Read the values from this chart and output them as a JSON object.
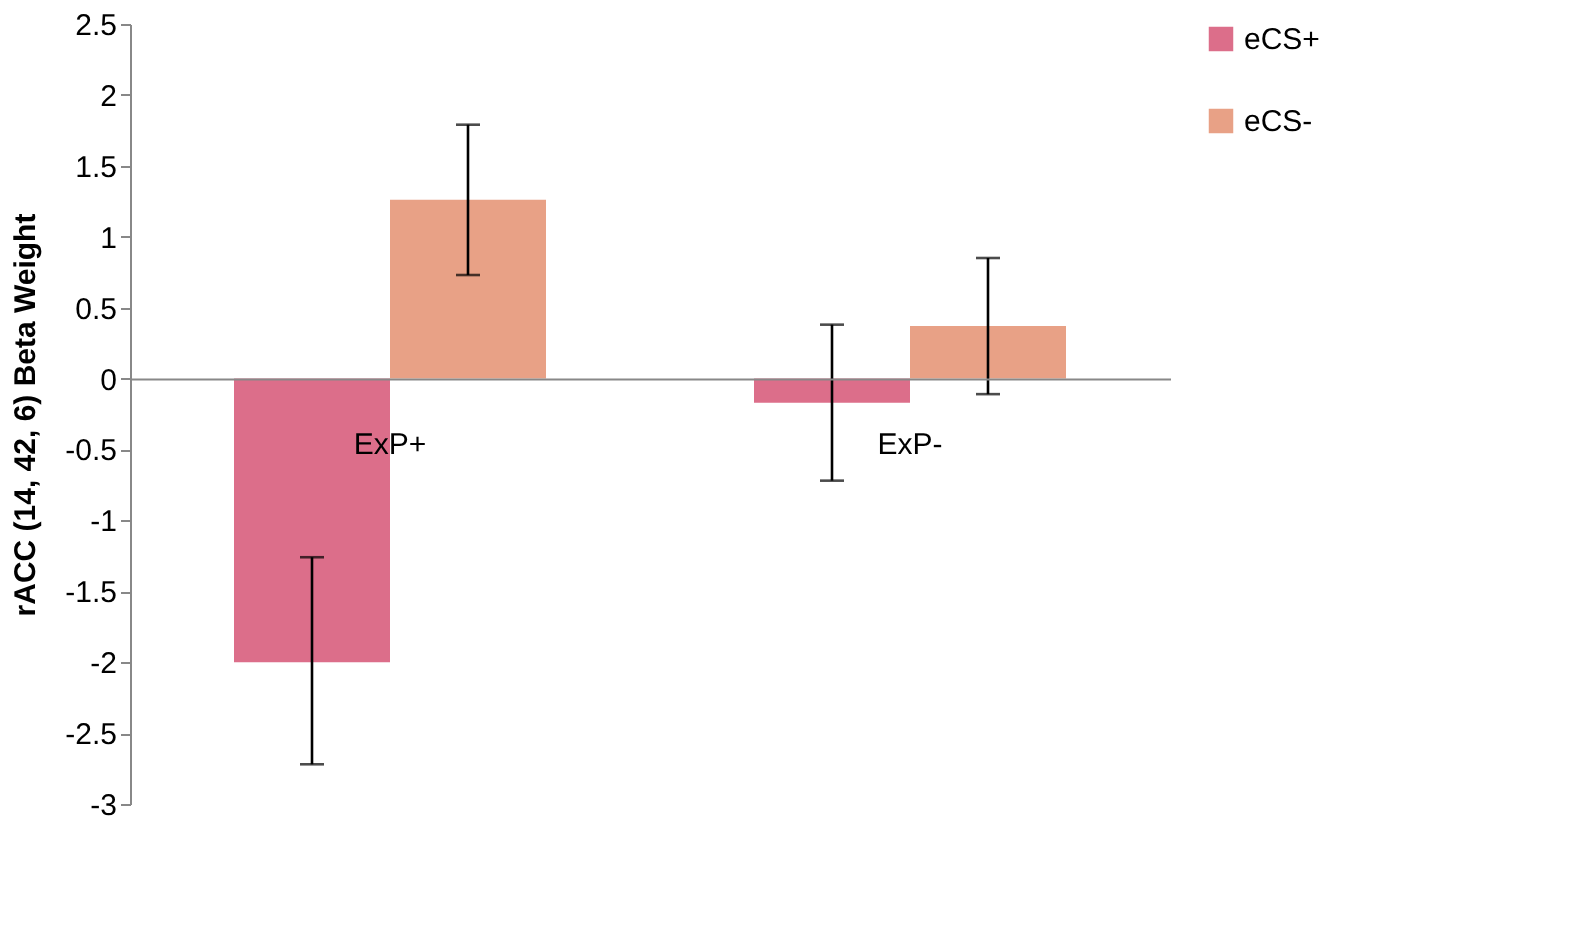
{
  "chart_data": {
    "type": "bar",
    "ylabel": "rACC (14, 42, 6) Beta Weight",
    "categories": [
      "ExP+",
      "ExP-"
    ],
    "series": [
      {
        "name": "eCS+",
        "color": "#dc6e8a",
        "values": [
          -2.0,
          -0.17
        ],
        "errors": [
          [
            -2.72,
            -1.26
          ],
          [
            -0.72,
            0.38
          ]
        ]
      },
      {
        "name": "eCS-",
        "color": "#e8a186",
        "values": [
          1.26,
          0.37
        ],
        "errors": [
          [
            0.73,
            1.79
          ],
          [
            -0.11,
            0.85
          ]
        ]
      }
    ],
    "ylim": [
      -3,
      2.5
    ],
    "yticks": [
      -3,
      -2.5,
      -2,
      -1.5,
      -1,
      -0.5,
      0,
      0.5,
      1,
      1.5,
      2,
      2.5
    ],
    "grid": false,
    "legend": "top right"
  }
}
